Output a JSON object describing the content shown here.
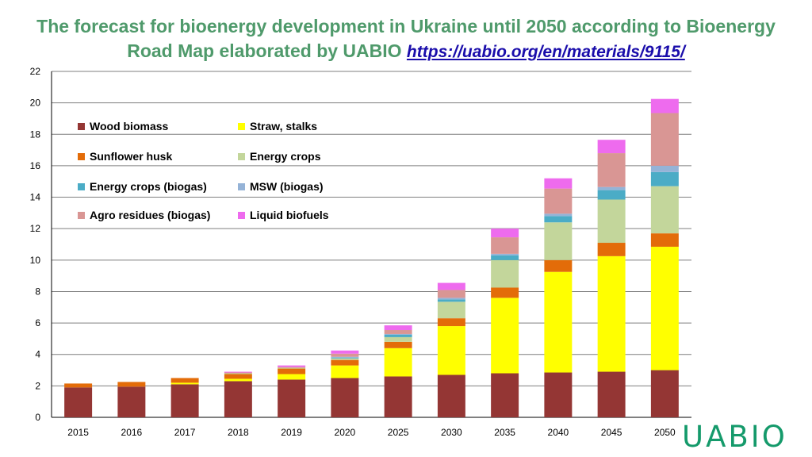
{
  "title": {
    "line1": "The forecast for bioenergy development in Ukraine until 2050 according to Bioenergy",
    "line2": "Road Map elaborated  by UABIO",
    "link": "https://uabio.org/en/materials/9115/"
  },
  "logo": "UABIO",
  "chart_data": {
    "type": "bar",
    "stacked": true,
    "categories": [
      "2015",
      "2016",
      "2017",
      "2018",
      "2019",
      "2020",
      "2025",
      "2030",
      "2035",
      "2040",
      "2045",
      "2050"
    ],
    "ylim": [
      0,
      22
    ],
    "yticks": [
      0,
      2,
      4,
      6,
      8,
      10,
      12,
      14,
      16,
      18,
      20,
      22
    ],
    "grid": true,
    "legend_position": "top-left inside",
    "series": [
      {
        "name": "Wood biomass",
        "color": "#943634",
        "values": [
          1.9,
          1.95,
          2.1,
          2.3,
          2.4,
          2.5,
          2.6,
          2.7,
          2.8,
          2.85,
          2.9,
          3.0
        ]
      },
      {
        "name": "Straw, stalks",
        "color": "#ffff00",
        "values": [
          0,
          0,
          0.1,
          0.15,
          0.35,
          0.8,
          1.8,
          3.1,
          4.8,
          6.4,
          7.35,
          7.85
        ]
      },
      {
        "name": "Sunflower husk",
        "color": "#e36c09",
        "values": [
          0.25,
          0.3,
          0.3,
          0.3,
          0.35,
          0.35,
          0.4,
          0.5,
          0.65,
          0.75,
          0.85,
          0.85
        ]
      },
      {
        "name": "Energy crops",
        "color": "#c3d69b",
        "values": [
          0,
          0,
          0,
          0.05,
          0.05,
          0.1,
          0.3,
          1.05,
          1.75,
          2.4,
          2.75,
          3.0
        ]
      },
      {
        "name": "Energy crops (biogas)",
        "color": "#4bacc6",
        "values": [
          0,
          0,
          0,
          0,
          0,
          0.05,
          0.15,
          0.15,
          0.3,
          0.4,
          0.6,
          0.9
        ]
      },
      {
        "name": "MSW (biogas)",
        "color": "#95b3d7",
        "values": [
          0,
          0,
          0,
          0,
          0,
          0.05,
          0.05,
          0.1,
          0.1,
          0.15,
          0.2,
          0.4
        ]
      },
      {
        "name": "Agro residues (biogas)",
        "color": "#d99694",
        "values": [
          0,
          0,
          0,
          0.05,
          0.05,
          0.2,
          0.25,
          0.5,
          1.05,
          1.6,
          2.15,
          3.35
        ]
      },
      {
        "name": "Liquid biofuels",
        "color": "#ee6bee",
        "values": [
          0,
          0,
          0,
          0.05,
          0.1,
          0.2,
          0.3,
          0.45,
          0.55,
          0.65,
          0.85,
          0.9
        ]
      }
    ]
  }
}
